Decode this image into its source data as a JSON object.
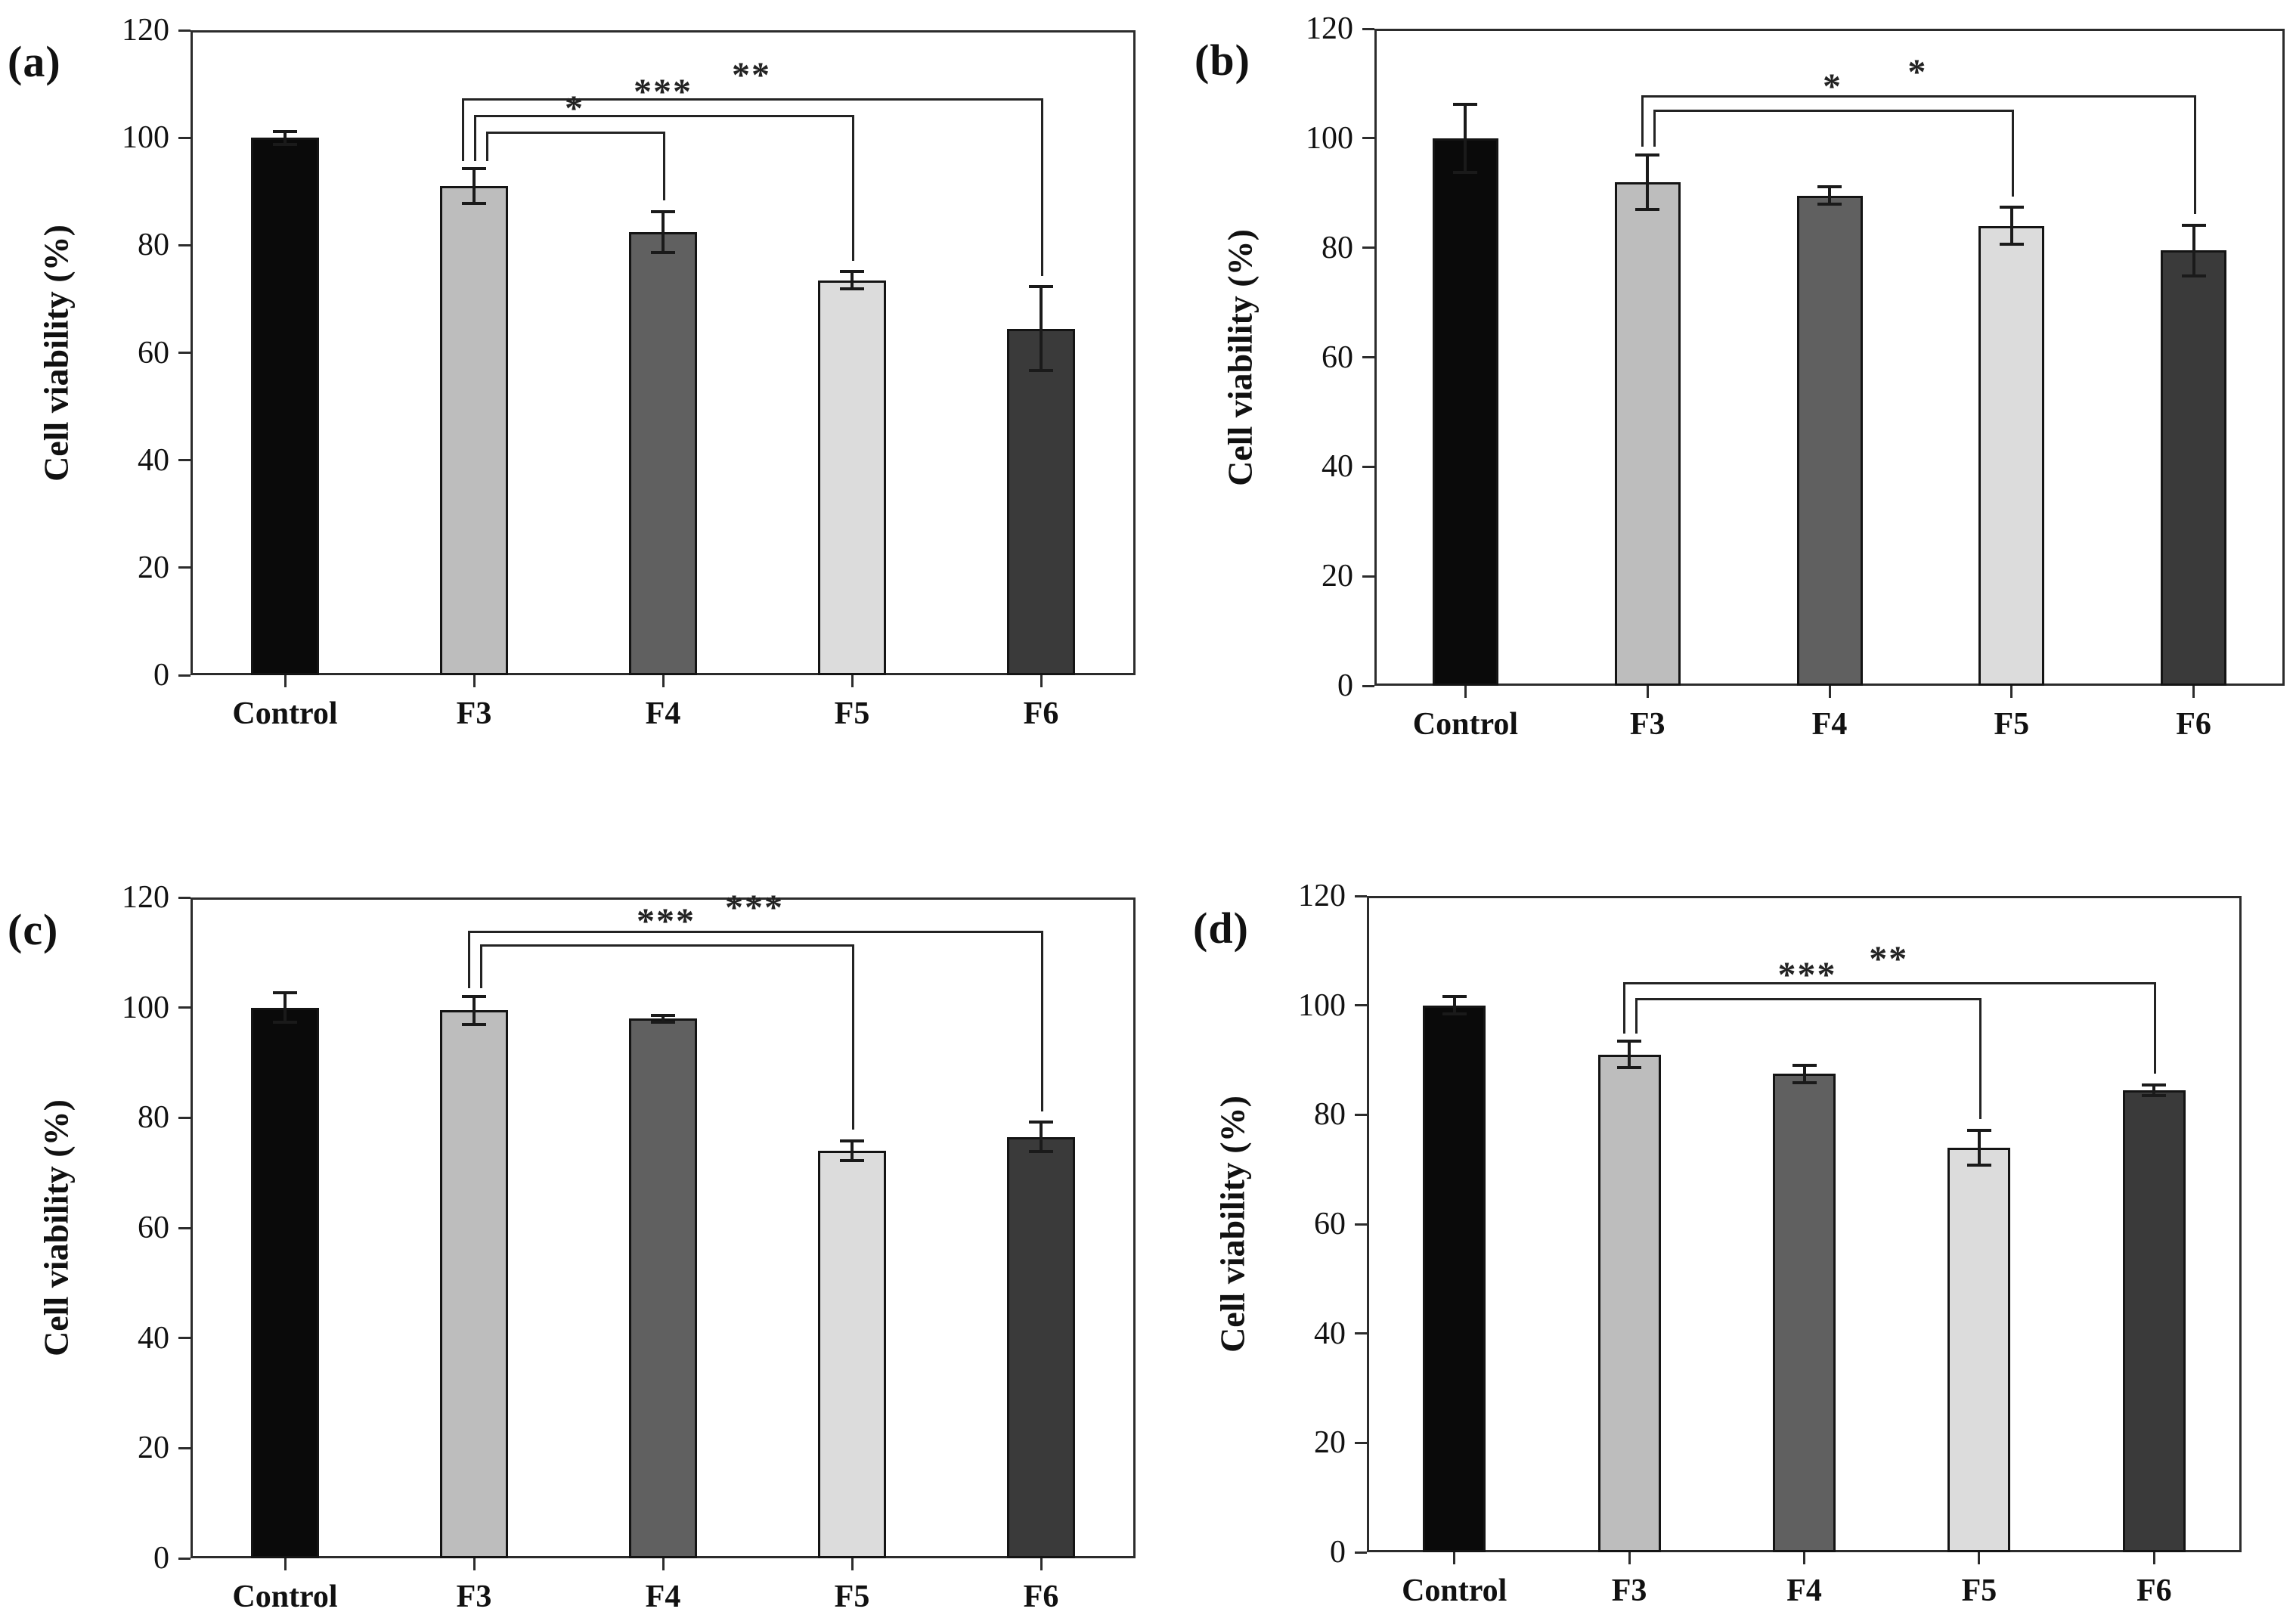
{
  "figure": {
    "background": "#ffffff",
    "axis_color": "#2c2c2c",
    "bar_border_color": "#141414",
    "bar_colors": [
      "#0a0a0a",
      "#bdbdbd",
      "#606060",
      "#dcdcdc",
      "#3a3a3a"
    ]
  },
  "chart_data": [
    {
      "type": "bar",
      "panel_label": "(a)",
      "ylabel": "Cell viability (%)",
      "xlabel": "",
      "ylim": [
        0,
        120
      ],
      "yticks": [
        0,
        20,
        40,
        60,
        80,
        100,
        120
      ],
      "grid": false,
      "legend": "none",
      "categories": [
        "Control",
        "F3",
        "F4",
        "F5",
        "F6"
      ],
      "values": [
        100,
        91,
        82.5,
        73.5,
        64.5
      ],
      "errors": [
        1.2,
        3.2,
        3.8,
        1.6,
        7.8
      ],
      "significance": [
        {
          "from": "F3",
          "to": "F4",
          "label": "*",
          "level": 101.2
        },
        {
          "from": "F3",
          "to": "F5",
          "label": "***",
          "level": 104.3
        },
        {
          "from": "F3",
          "to": "F6",
          "label": "**",
          "level": 107.3
        }
      ]
    },
    {
      "type": "bar",
      "panel_label": "(b)",
      "ylabel": "Cell viability (%)",
      "xlabel": "",
      "ylim": [
        0,
        120
      ],
      "yticks": [
        0,
        20,
        40,
        60,
        80,
        100,
        120
      ],
      "grid": false,
      "legend": "none",
      "categories": [
        "Control",
        "F3",
        "F4",
        "F5",
        "F6"
      ],
      "values": [
        100,
        92,
        89.5,
        84,
        79.5
      ],
      "errors": [
        6.2,
        5.0,
        1.6,
        3.4,
        4.6
      ],
      "significance": [
        {
          "from": "F3",
          "to": "F5",
          "label": "*",
          "level": 105.2
        },
        {
          "from": "F3",
          "to": "F6",
          "label": "*",
          "level": 107.8
        }
      ]
    },
    {
      "type": "bar",
      "panel_label": "(c)",
      "ylabel": "Cell viability (%)",
      "xlabel": "",
      "ylim": [
        0,
        120
      ],
      "yticks": [
        0,
        20,
        40,
        60,
        80,
        100,
        120
      ],
      "grid": false,
      "legend": "none",
      "categories": [
        "Control",
        "F3",
        "F4",
        "F5",
        "F6"
      ],
      "values": [
        100,
        99.5,
        98,
        74,
        76.5
      ],
      "errors": [
        2.7,
        2.5,
        0.6,
        1.8,
        2.7
      ],
      "significance": [
        {
          "from": "F3",
          "to": "F5",
          "label": "***",
          "level": 111.5
        },
        {
          "from": "F3",
          "to": "F6",
          "label": "***",
          "level": 114.0
        }
      ]
    },
    {
      "type": "bar",
      "panel_label": "(d)",
      "ylabel": "Cell viability (%)",
      "xlabel": "",
      "ylim": [
        0,
        120
      ],
      "yticks": [
        0,
        20,
        40,
        60,
        80,
        100,
        120
      ],
      "grid": false,
      "legend": "none",
      "categories": [
        "Control",
        "F3",
        "F4",
        "F5",
        "F6"
      ],
      "values": [
        100,
        91,
        87.5,
        74,
        84.5
      ],
      "errors": [
        1.6,
        2.4,
        1.6,
        3.2,
        1.0
      ],
      "significance": [
        {
          "from": "F3",
          "to": "F5",
          "label": "***",
          "level": 101.4
        },
        {
          "from": "F3",
          "to": "F6",
          "label": "**",
          "level": 104.3
        }
      ]
    }
  ]
}
